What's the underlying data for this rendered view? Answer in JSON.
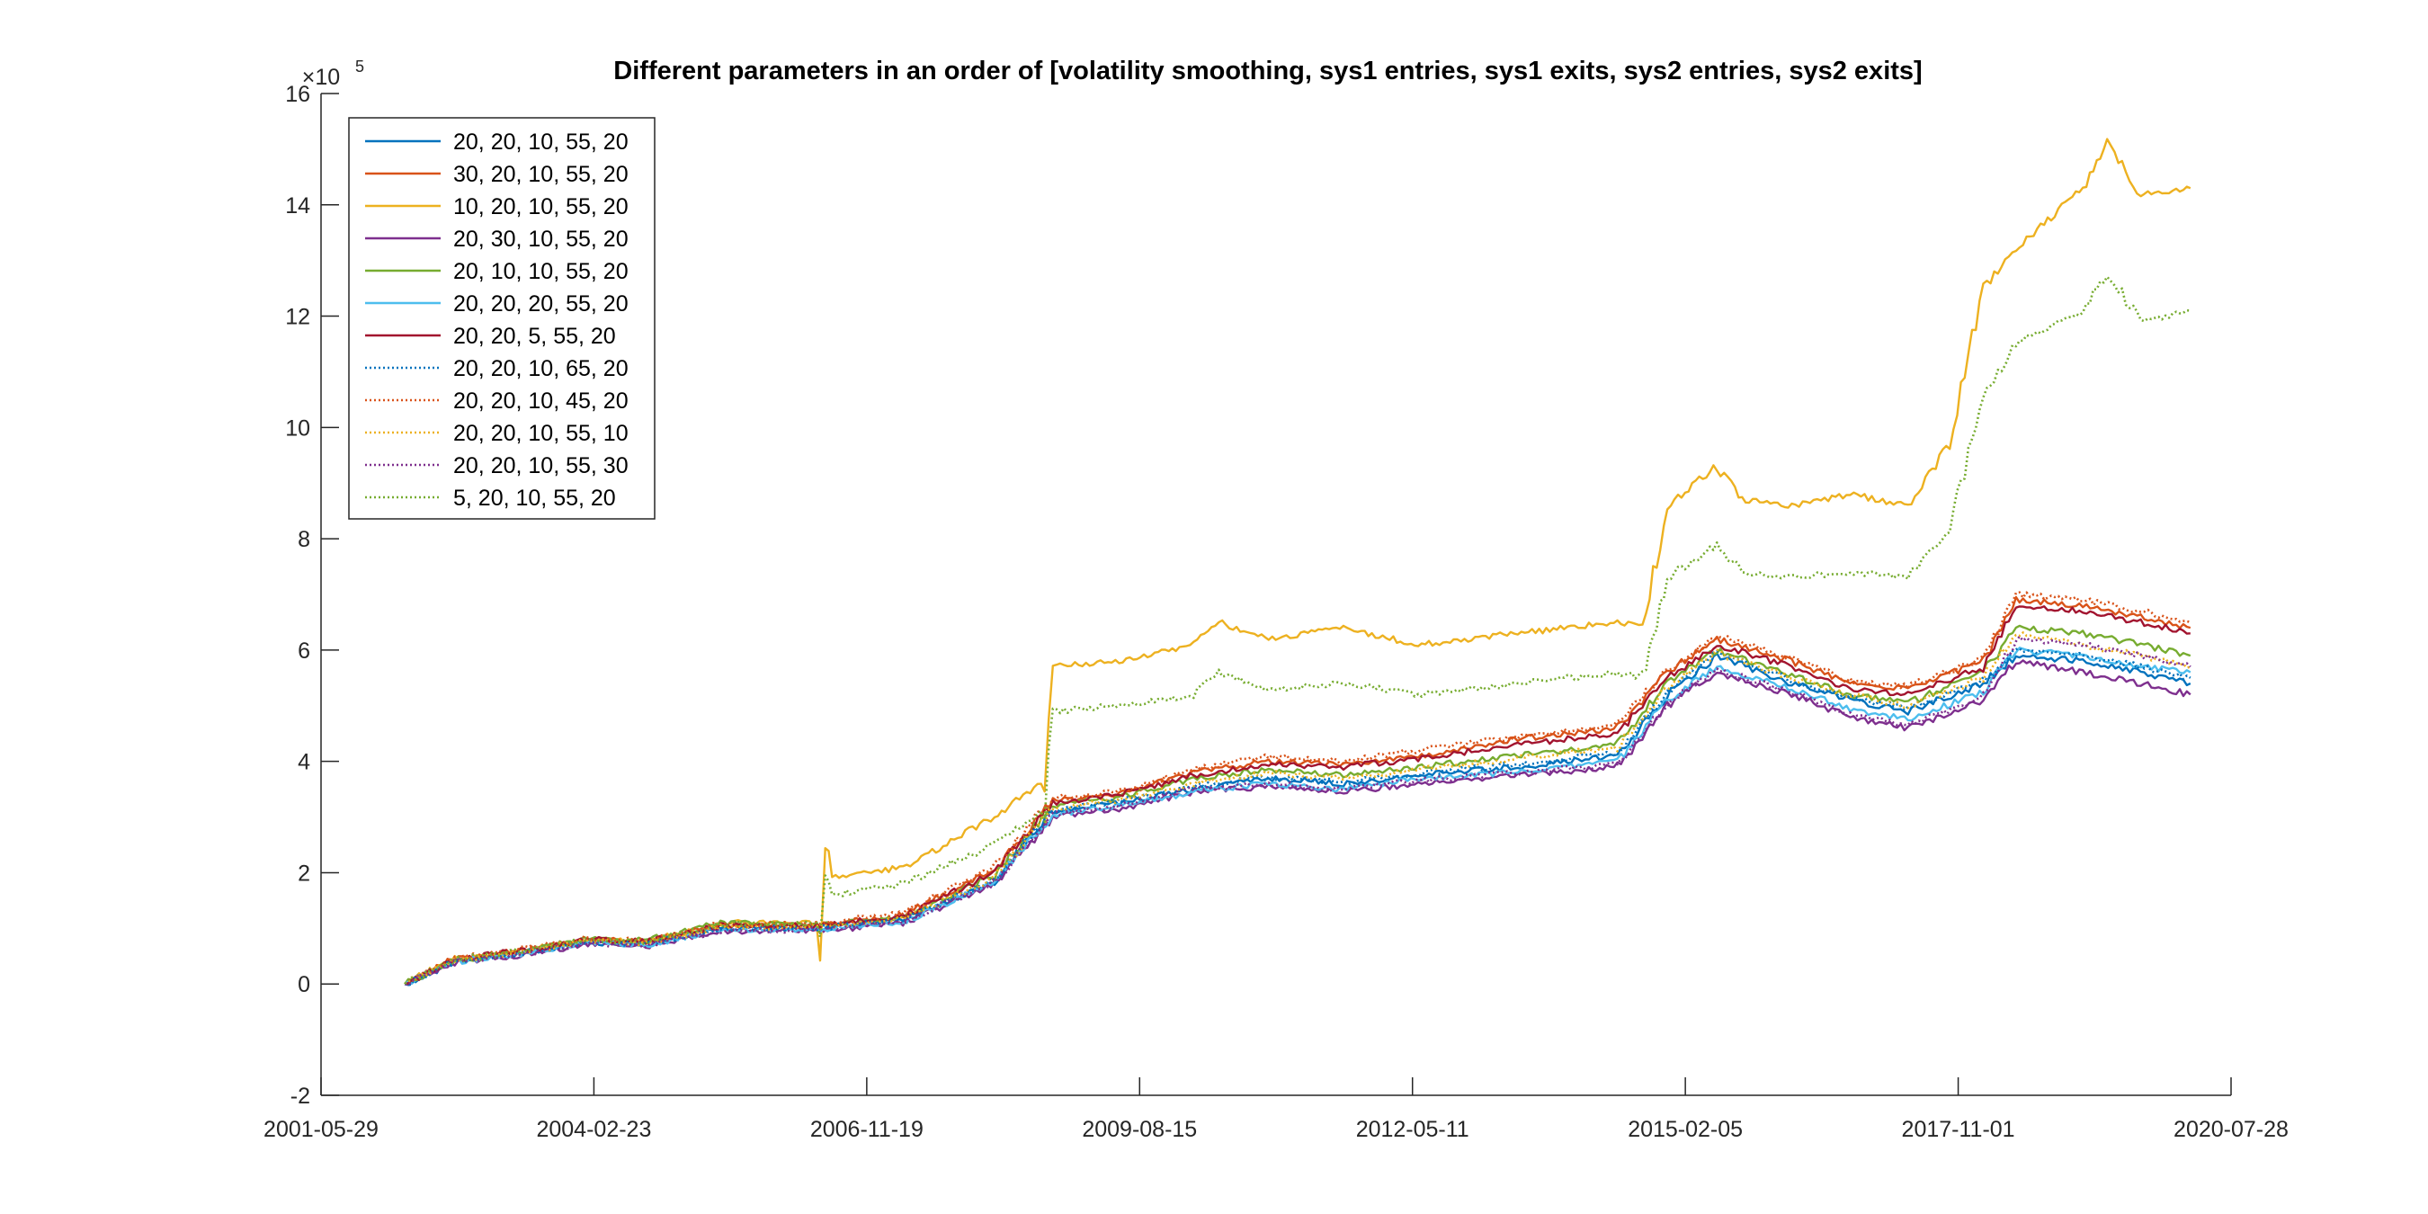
{
  "chart_data": {
    "type": "line",
    "title": "Different parameters in an order of [volatility smoothing, sys1 entries, sys1 exits, sys2 entries, sys2 exits]",
    "xlabel": "",
    "ylabel": "",
    "x_is_date": true,
    "xlim": [
      "2001-05-29",
      "2020-07-28"
    ],
    "ylim": [
      -2,
      16
    ],
    "y_exponent_label": "×10",
    "y_exponent_power": "5",
    "x_ticks": [
      "2001-05-29",
      "2004-02-23",
      "2006-11-19",
      "2009-08-15",
      "2012-05-11",
      "2015-02-05",
      "2017-11-01",
      "2020-07-28"
    ],
    "y_ticks": [
      "-2",
      "0",
      "2",
      "4",
      "6",
      "8",
      "10",
      "12",
      "14",
      "16"
    ],
    "grid": false,
    "legend_position": "top-left",
    "series": [
      {
        "name": "20, 20, 10, 55, 20",
        "color": "#0072BD",
        "style": "solid",
        "x": [
          "2002-04-01",
          "2002-10-01",
          "2003-06-01",
          "2004-02-01",
          "2004-09-01",
          "2005-06-01",
          "2006-06-01",
          "2007-04-01",
          "2008-03-01",
          "2008-10-01",
          "2009-06-01",
          "2010-03-01",
          "2010-12-01",
          "2011-09-01",
          "2012-06-01",
          "2013-06-01",
          "2014-06-01",
          "2014-12-01",
          "2015-06-01",
          "2016-03-01",
          "2016-10-01",
          "2017-05-01",
          "2018-02-01",
          "2018-06-01",
          "2019-02-01",
          "2019-09-01",
          "2020-03-01"
        ],
        "y": [
          0.0,
          0.4,
          0.55,
          0.75,
          0.7,
          1.0,
          1.0,
          1.15,
          1.85,
          3.1,
          3.25,
          3.5,
          3.7,
          3.6,
          3.75,
          3.9,
          4.1,
          5.2,
          5.9,
          5.4,
          5.1,
          4.9,
          5.4,
          5.9,
          5.8,
          5.6,
          5.4
        ]
      },
      {
        "name": "30, 20, 10, 55, 20",
        "color": "#D95319",
        "style": "solid",
        "x": [
          "2002-04-01",
          "2002-10-01",
          "2003-06-01",
          "2004-02-01",
          "2004-09-01",
          "2005-06-01",
          "2006-06-01",
          "2007-04-01",
          "2008-03-01",
          "2008-10-01",
          "2009-06-01",
          "2010-03-01",
          "2010-12-01",
          "2011-09-01",
          "2012-06-01",
          "2013-06-01",
          "2014-06-01",
          "2014-12-01",
          "2015-06-01",
          "2016-03-01",
          "2016-10-01",
          "2017-05-01",
          "2018-02-01",
          "2018-06-01",
          "2019-02-01",
          "2019-09-01",
          "2020-03-01"
        ],
        "y": [
          0.0,
          0.45,
          0.6,
          0.8,
          0.75,
          1.05,
          1.05,
          1.25,
          2.05,
          3.3,
          3.4,
          3.8,
          4.0,
          3.95,
          4.1,
          4.4,
          4.6,
          5.6,
          6.2,
          5.8,
          5.4,
          5.3,
          5.8,
          6.9,
          6.8,
          6.6,
          6.4
        ]
      },
      {
        "name": "10, 20, 10, 55, 20",
        "color": "#EDB120",
        "style": "solid",
        "x": [
          "2002-04-01",
          "2002-10-01",
          "2003-06-01",
          "2004-02-01",
          "2004-09-01",
          "2005-06-01",
          "2006-06-01",
          "2006-06-20",
          "2006-07-15",
          "2007-04-01",
          "2008-03-01",
          "2008-09-01",
          "2008-10-01",
          "2009-06-01",
          "2010-03-01",
          "2010-06-01",
          "2010-12-01",
          "2011-09-01",
          "2012-06-01",
          "2013-06-01",
          "2014-06-01",
          "2014-09-01",
          "2014-12-01",
          "2015-06-01",
          "2015-09-01",
          "2016-03-01",
          "2016-10-01",
          "2017-05-01",
          "2017-10-01",
          "2018-02-01",
          "2018-06-01",
          "2019-02-01",
          "2019-05-01",
          "2019-09-01",
          "2020-03-01"
        ],
        "y": [
          0.0,
          0.45,
          0.6,
          0.8,
          0.75,
          1.1,
          1.1,
          2.6,
          1.9,
          2.1,
          3.0,
          3.7,
          5.7,
          5.8,
          6.1,
          6.5,
          6.2,
          6.4,
          6.1,
          6.3,
          6.5,
          6.4,
          8.6,
          9.3,
          8.7,
          8.6,
          8.8,
          8.6,
          9.7,
          12.5,
          13.2,
          14.3,
          15.1,
          14.2,
          14.3
        ]
      },
      {
        "name": "20, 30, 10, 55, 20",
        "color": "#7E2F8E",
        "style": "solid",
        "x": [
          "2002-04-01",
          "2002-10-01",
          "2003-06-01",
          "2004-02-01",
          "2004-09-01",
          "2005-06-01",
          "2006-06-01",
          "2007-04-01",
          "2008-03-01",
          "2008-10-01",
          "2009-06-01",
          "2010-03-01",
          "2010-12-01",
          "2011-09-01",
          "2012-06-01",
          "2013-06-01",
          "2014-06-01",
          "2014-12-01",
          "2015-06-01",
          "2016-03-01",
          "2016-10-01",
          "2017-05-01",
          "2018-02-01",
          "2018-06-01",
          "2019-02-01",
          "2019-09-01",
          "2020-03-01"
        ],
        "y": [
          0.0,
          0.38,
          0.52,
          0.72,
          0.68,
          0.95,
          0.95,
          1.1,
          1.8,
          3.0,
          3.15,
          3.45,
          3.55,
          3.45,
          3.6,
          3.75,
          3.9,
          5.0,
          5.6,
          5.2,
          4.8,
          4.6,
          5.1,
          5.8,
          5.6,
          5.4,
          5.2
        ]
      },
      {
        "name": "20, 10, 10, 55, 20",
        "color": "#77AC30",
        "style": "solid",
        "x": [
          "2002-04-01",
          "2002-10-01",
          "2003-06-01",
          "2004-02-01",
          "2004-09-01",
          "2005-06-01",
          "2006-06-01",
          "2007-04-01",
          "2008-03-01",
          "2008-10-01",
          "2009-06-01",
          "2010-03-01",
          "2010-12-01",
          "2011-09-01",
          "2012-06-01",
          "2013-06-01",
          "2014-06-01",
          "2014-12-01",
          "2015-06-01",
          "2016-03-01",
          "2016-10-01",
          "2017-05-01",
          "2018-02-01",
          "2018-06-01",
          "2019-02-01",
          "2019-09-01",
          "2020-03-01"
        ],
        "y": [
          0.0,
          0.42,
          0.58,
          0.82,
          0.78,
          1.1,
          1.05,
          1.2,
          1.95,
          3.2,
          3.35,
          3.7,
          3.85,
          3.75,
          3.9,
          4.1,
          4.3,
          5.4,
          6.0,
          5.55,
          5.2,
          5.05,
          5.6,
          6.4,
          6.3,
          6.1,
          5.9
        ]
      },
      {
        "name": "20, 20, 20, 55, 20",
        "color": "#4DBEEE",
        "style": "solid",
        "x": [
          "2002-04-01",
          "2002-10-01",
          "2003-06-01",
          "2004-02-01",
          "2004-09-01",
          "2005-06-01",
          "2006-06-01",
          "2007-04-01",
          "2008-03-01",
          "2008-10-01",
          "2009-06-01",
          "2010-03-01",
          "2010-12-01",
          "2011-09-01",
          "2012-06-01",
          "2013-06-01",
          "2014-06-01",
          "2014-12-01",
          "2015-06-01",
          "2016-03-01",
          "2016-10-01",
          "2017-05-01",
          "2018-02-01",
          "2018-06-01",
          "2019-02-01",
          "2019-09-01",
          "2020-03-01"
        ],
        "y": [
          0.0,
          0.4,
          0.55,
          0.74,
          0.7,
          0.98,
          0.98,
          1.12,
          1.82,
          3.05,
          3.2,
          3.45,
          3.6,
          3.5,
          3.7,
          3.8,
          4.0,
          5.1,
          5.7,
          5.3,
          4.95,
          4.75,
          5.25,
          6.0,
          5.9,
          5.7,
          5.6
        ]
      },
      {
        "name": "20, 20, 5, 55, 20",
        "color": "#A2142F",
        "style": "solid",
        "x": [
          "2002-04-01",
          "2002-10-01",
          "2003-06-01",
          "2004-02-01",
          "2004-09-01",
          "2005-06-01",
          "2006-06-01",
          "2007-04-01",
          "2008-03-01",
          "2008-10-01",
          "2009-06-01",
          "2010-03-01",
          "2010-12-01",
          "2011-09-01",
          "2012-06-01",
          "2013-06-01",
          "2014-06-01",
          "2014-12-01",
          "2015-06-01",
          "2016-03-01",
          "2016-10-01",
          "2017-05-01",
          "2018-02-01",
          "2018-06-01",
          "2019-02-01",
          "2019-09-01",
          "2020-03-01"
        ],
        "y": [
          0.0,
          0.44,
          0.6,
          0.8,
          0.76,
          1.05,
          1.05,
          1.22,
          2.0,
          3.25,
          3.4,
          3.75,
          3.95,
          3.9,
          4.05,
          4.3,
          4.5,
          5.5,
          6.1,
          5.7,
          5.3,
          5.2,
          5.7,
          6.8,
          6.7,
          6.5,
          6.3
        ]
      },
      {
        "name": "20, 20, 10, 65, 20",
        "color": "#0072BD",
        "style": "dotted",
        "x": [
          "2002-04-01",
          "2002-10-01",
          "2003-06-01",
          "2004-02-01",
          "2004-09-01",
          "2005-06-01",
          "2006-06-01",
          "2007-04-01",
          "2008-03-01",
          "2008-10-01",
          "2009-06-01",
          "2010-03-01",
          "2010-12-01",
          "2011-09-01",
          "2012-06-01",
          "2013-06-01",
          "2014-06-01",
          "2014-12-01",
          "2015-06-01",
          "2016-03-01",
          "2016-10-01",
          "2017-05-01",
          "2018-02-01",
          "2018-06-01",
          "2019-02-01",
          "2019-09-01",
          "2020-03-01"
        ],
        "y": [
          0.0,
          0.41,
          0.56,
          0.76,
          0.71,
          1.0,
          1.0,
          1.16,
          1.88,
          3.12,
          3.28,
          3.55,
          3.72,
          3.62,
          3.78,
          3.95,
          4.15,
          5.25,
          5.95,
          5.45,
          5.15,
          4.95,
          5.45,
          6.0,
          5.9,
          5.7,
          5.5
        ]
      },
      {
        "name": "20, 20, 10, 45, 20",
        "color": "#D95319",
        "style": "dotted",
        "x": [
          "2002-04-01",
          "2002-10-01",
          "2003-06-01",
          "2004-02-01",
          "2004-09-01",
          "2005-06-01",
          "2006-06-01",
          "2007-04-01",
          "2008-03-01",
          "2008-10-01",
          "2009-06-01",
          "2010-03-01",
          "2010-12-01",
          "2011-09-01",
          "2012-06-01",
          "2013-06-01",
          "2014-06-01",
          "2014-12-01",
          "2015-06-01",
          "2016-03-01",
          "2016-10-01",
          "2017-05-01",
          "2018-02-01",
          "2018-06-01",
          "2019-02-01",
          "2019-09-01",
          "2020-03-01"
        ],
        "y": [
          0.0,
          0.45,
          0.62,
          0.82,
          0.77,
          1.08,
          1.08,
          1.28,
          2.1,
          3.35,
          3.45,
          3.85,
          4.1,
          4.0,
          4.2,
          4.45,
          4.65,
          5.65,
          6.25,
          5.85,
          5.45,
          5.35,
          5.85,
          7.0,
          6.9,
          6.7,
          6.5
        ]
      },
      {
        "name": "20, 20, 10, 55, 10",
        "color": "#EDB120",
        "style": "dotted",
        "x": [
          "2002-04-01",
          "2002-10-01",
          "2003-06-01",
          "2004-02-01",
          "2004-09-01",
          "2005-06-01",
          "2006-06-01",
          "2007-04-01",
          "2008-03-01",
          "2008-10-01",
          "2009-06-01",
          "2010-03-01",
          "2010-12-01",
          "2011-09-01",
          "2012-06-01",
          "2013-06-01",
          "2014-06-01",
          "2014-12-01",
          "2015-06-01",
          "2016-03-01",
          "2016-10-01",
          "2017-05-01",
          "2018-02-01",
          "2018-06-01",
          "2019-02-01",
          "2019-09-01",
          "2020-03-01"
        ],
        "y": [
          0.0,
          0.42,
          0.57,
          0.78,
          0.73,
          1.02,
          1.02,
          1.18,
          1.9,
          3.15,
          3.3,
          3.6,
          3.8,
          3.7,
          3.85,
          4.05,
          4.25,
          5.35,
          5.95,
          5.5,
          5.2,
          5.0,
          5.5,
          6.3,
          6.1,
          5.9,
          5.7
        ]
      },
      {
        "name": "20, 20, 10, 55, 30",
        "color": "#7E2F8E",
        "style": "dotted",
        "x": [
          "2002-04-01",
          "2002-10-01",
          "2003-06-01",
          "2004-02-01",
          "2004-09-01",
          "2005-06-01",
          "2006-06-01",
          "2007-04-01",
          "2008-03-01",
          "2008-10-01",
          "2009-06-01",
          "2010-03-01",
          "2010-12-01",
          "2011-09-01",
          "2012-06-01",
          "2013-06-01",
          "2014-06-01",
          "2014-12-01",
          "2015-06-01",
          "2016-03-01",
          "2016-10-01",
          "2017-05-01",
          "2018-02-01",
          "2018-06-01",
          "2019-02-01",
          "2019-09-01",
          "2020-03-01"
        ],
        "y": [
          0.0,
          0.39,
          0.53,
          0.73,
          0.69,
          0.96,
          0.97,
          1.12,
          1.82,
          3.05,
          3.2,
          3.5,
          3.6,
          3.5,
          3.65,
          3.8,
          3.95,
          5.05,
          5.65,
          5.25,
          4.85,
          4.65,
          5.15,
          6.2,
          6.1,
          5.9,
          5.7
        ]
      },
      {
        "name": "5, 20, 10, 55, 20",
        "color": "#77AC30",
        "style": "dotted",
        "x": [
          "2002-04-01",
          "2002-10-01",
          "2003-06-01",
          "2004-02-01",
          "2004-09-01",
          "2005-06-01",
          "2006-06-01",
          "2006-06-20",
          "2006-07-15",
          "2007-04-01",
          "2008-03-01",
          "2008-09-01",
          "2008-10-01",
          "2009-06-01",
          "2010-03-01",
          "2010-06-01",
          "2010-12-01",
          "2011-09-01",
          "2012-06-01",
          "2013-06-01",
          "2014-06-01",
          "2014-09-01",
          "2014-12-01",
          "2015-06-01",
          "2015-09-01",
          "2016-03-01",
          "2016-10-01",
          "2017-05-01",
          "2017-10-01",
          "2018-02-01",
          "2018-06-01",
          "2019-02-01",
          "2019-05-01",
          "2019-09-01",
          "2020-03-01"
        ],
        "y": [
          0.0,
          0.44,
          0.6,
          0.8,
          0.75,
          1.08,
          1.08,
          2.0,
          1.6,
          1.8,
          2.5,
          3.1,
          4.9,
          5.0,
          5.2,
          5.6,
          5.3,
          5.4,
          5.2,
          5.4,
          5.6,
          5.5,
          7.3,
          7.9,
          7.4,
          7.3,
          7.4,
          7.3,
          8.2,
          10.5,
          11.5,
          12.1,
          12.8,
          11.9,
          12.1
        ]
      }
    ]
  }
}
